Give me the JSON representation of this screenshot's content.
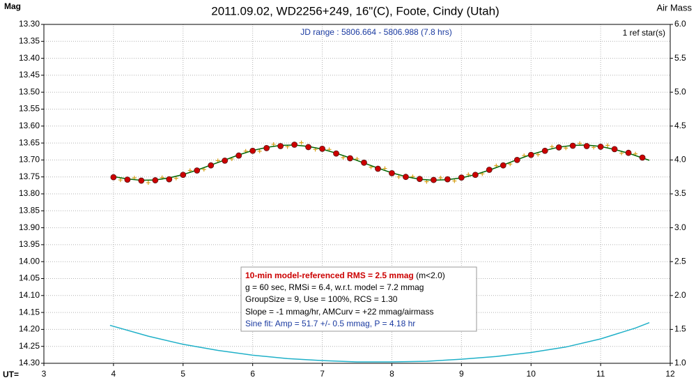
{
  "chart_data": {
    "type": "scatter",
    "title": "2011.09.02, WD2256+249, 16\"(C), Foote, Cindy (Utah)",
    "y_label": "Mag",
    "y2_label": "Air Mass",
    "x_label": "UT=",
    "jd_range": "JD range : 5806.664 - 5806.988 (7.8 hrs)",
    "ref_stars": "1 ref star(s)",
    "stats_title": "10-min model-referenced RMS = 2.5 mmag",
    "stats_note": "(m<2.0)",
    "stats_lines": [
      "g = 60 sec, RMSi = 6.4, w.r.t. model = 7.2 mmag",
      "GroupSize = 9, Use = 100%, RCS = 1.30",
      "Slope = -1 mmag/hr, AMCurv = +22 mmag/airmass"
    ],
    "sine_fit": "Sine fit: Amp = 51.7 +/- 0.5 mmag, P = 4.18 hr",
    "xlim": [
      3,
      12
    ],
    "xticks": [
      3,
      4,
      5,
      6,
      7,
      8,
      9,
      10,
      11,
      12
    ],
    "ylim": [
      14.3,
      13.3
    ],
    "yticks": [
      {
        "value": 13.3,
        "label": "13.30"
      },
      {
        "value": 13.35,
        "label": "13.35"
      },
      {
        "value": 13.4,
        "label": "13.40"
      },
      {
        "value": 13.45,
        "label": "13.45"
      },
      {
        "value": 13.5,
        "label": "13.50"
      },
      {
        "value": 13.55,
        "label": "13.55"
      },
      {
        "value": 13.6,
        "label": "13.60"
      },
      {
        "value": 13.65,
        "label": "13.65"
      },
      {
        "value": 13.7,
        "label": "13.70"
      },
      {
        "value": 13.75,
        "label": "13.75"
      },
      {
        "value": 13.8,
        "label": "13.80"
      },
      {
        "value": 13.85,
        "label": "13.85"
      },
      {
        "value": 13.9,
        "label": "13.90"
      },
      {
        "value": 13.95,
        "label": "13.95"
      },
      {
        "value": 14.0,
        "label": "14.00"
      },
      {
        "value": 14.05,
        "label": "14.05"
      },
      {
        "value": 14.1,
        "label": "14.10"
      },
      {
        "value": 14.15,
        "label": "14.15"
      },
      {
        "value": 14.2,
        "label": "14.20"
      },
      {
        "value": 14.25,
        "label": "14.25"
      },
      {
        "value": 14.3,
        "label": "14.30"
      }
    ],
    "y2lim": [
      1.0,
      6.0
    ],
    "y2ticks": [
      {
        "value": 1,
        "label": "1.0"
      },
      {
        "value": 1.5,
        "label": "1.5"
      },
      {
        "value": 2,
        "label": "2.0"
      },
      {
        "value": 2.5,
        "label": "2.5"
      },
      {
        "value": 3,
        "label": "3.0"
      },
      {
        "value": 3.5,
        "label": "3.5"
      },
      {
        "value": 4,
        "label": "4.0"
      },
      {
        "value": 4.5,
        "label": "4.5"
      },
      {
        "value": 5,
        "label": "5.0"
      },
      {
        "value": 5.5,
        "label": "5.5"
      },
      {
        "value": 6,
        "label": "6.0"
      }
    ],
    "grid": true,
    "series": [
      {
        "marker": "line",
        "axis": "y2",
        "color": "#1fb0c8",
        "x": [
          3.95,
          4.5,
          5.0,
          5.5,
          6.0,
          6.5,
          7.0,
          7.5,
          8.0,
          8.5,
          9.0,
          9.5,
          10.0,
          10.5,
          11.0,
          11.5,
          11.7
        ],
        "values": [
          1.56,
          1.4,
          1.28,
          1.19,
          1.12,
          1.07,
          1.04,
          1.02,
          1.02,
          1.03,
          1.06,
          1.1,
          1.16,
          1.24,
          1.36,
          1.52,
          1.6
        ]
      },
      {
        "marker": "plus",
        "color": "#d4a017",
        "x": [
          4.1,
          4.3,
          4.5,
          4.7,
          4.9,
          5.1,
          5.3,
          5.5,
          5.7,
          5.9,
          6.1,
          6.3,
          6.5,
          6.7,
          6.9,
          7.1,
          7.3,
          7.5,
          7.7,
          7.9,
          8.1,
          8.3,
          8.5,
          8.7,
          8.9,
          9.1,
          9.3,
          9.5,
          9.7,
          9.9,
          10.1,
          10.3,
          10.5,
          10.7,
          10.9,
          11.1,
          11.3,
          11.5
        ],
        "values": [
          13.759,
          13.753,
          13.767,
          13.752,
          13.754,
          13.731,
          13.728,
          13.702,
          13.697,
          13.674,
          13.674,
          13.654,
          13.661,
          13.649,
          13.669,
          13.669,
          13.693,
          13.697,
          13.721,
          13.725,
          13.75,
          13.749,
          13.764,
          13.753,
          13.762,
          13.743,
          13.741,
          13.717,
          13.712,
          13.687,
          13.684,
          13.661,
          13.665,
          13.651,
          13.663,
          13.657,
          13.68,
          13.682
        ]
      },
      {
        "marker": "line",
        "color": "#006400",
        "x": [
          4.0,
          4.2,
          4.4,
          4.6,
          4.8,
          5.0,
          5.2,
          5.4,
          5.6,
          5.8,
          6.0,
          6.2,
          6.4,
          6.6,
          6.8,
          7.0,
          7.2,
          7.4,
          7.6,
          7.8,
          8.0,
          8.2,
          8.4,
          8.6,
          8.8,
          9.0,
          9.2,
          9.4,
          9.6,
          9.8,
          10.0,
          10.2,
          10.4,
          10.6,
          10.8,
          11.0,
          11.2,
          11.4,
          11.6,
          11.7
        ],
        "values": [
          13.749,
          13.756,
          13.76,
          13.759,
          13.753,
          13.743,
          13.73,
          13.715,
          13.7,
          13.685,
          13.672,
          13.663,
          13.657,
          13.656,
          13.66,
          13.668,
          13.68,
          13.694,
          13.709,
          13.724,
          13.738,
          13.749,
          13.757,
          13.76,
          13.758,
          13.753,
          13.743,
          13.73,
          13.715,
          13.699,
          13.684,
          13.672,
          13.662,
          13.657,
          13.656,
          13.66,
          13.669,
          13.68,
          13.694,
          13.701
        ]
      },
      {
        "marker": "dot",
        "color": "#cc0000",
        "x": [
          4.0,
          4.2,
          4.4,
          4.6,
          4.8,
          5.0,
          5.2,
          5.4,
          5.6,
          5.8,
          6.0,
          6.2,
          6.4,
          6.6,
          6.8,
          7.0,
          7.2,
          7.4,
          7.6,
          7.8,
          8.0,
          8.2,
          8.4,
          8.6,
          8.8,
          9.0,
          9.2,
          9.4,
          9.6,
          9.8,
          10.0,
          10.2,
          10.4,
          10.6,
          10.8,
          11.0,
          11.2,
          11.4,
          11.6
        ],
        "values": [
          13.751,
          13.758,
          13.761,
          13.76,
          13.757,
          13.744,
          13.731,
          13.716,
          13.702,
          13.687,
          13.673,
          13.665,
          13.659,
          13.655,
          13.662,
          13.667,
          13.681,
          13.695,
          13.708,
          13.726,
          13.739,
          13.75,
          13.756,
          13.759,
          13.757,
          13.752,
          13.744,
          13.729,
          13.716,
          13.7,
          13.685,
          13.673,
          13.663,
          13.658,
          13.659,
          13.661,
          13.668,
          13.679,
          13.693
        ]
      }
    ]
  }
}
